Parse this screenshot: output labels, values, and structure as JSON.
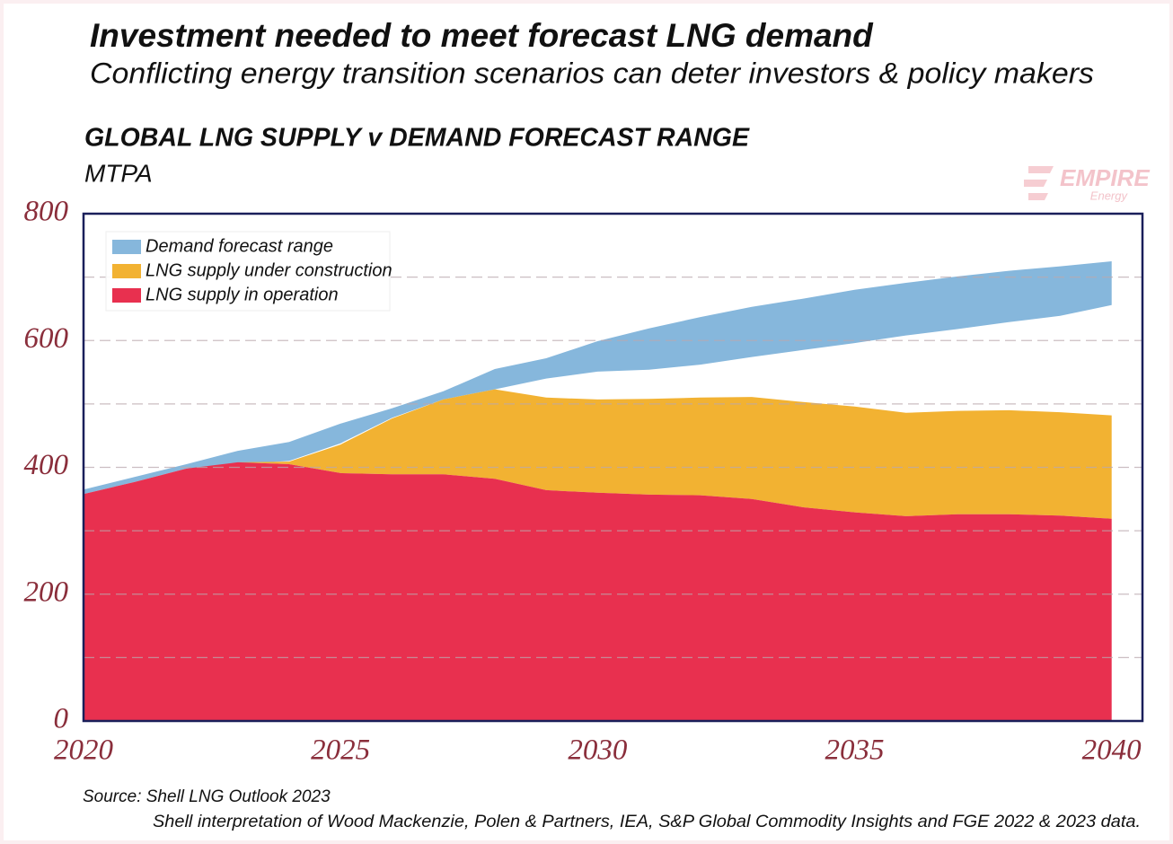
{
  "chart_data": {
    "type": "area",
    "title": "Investment needed to meet forecast LNG demand",
    "subtitle": "Conflicting energy transition scenarios can deter investors & policy makers",
    "chart_title": "GLOBAL LNG SUPPLY v DEMAND FORECAST RANGE",
    "y_label": "MTPA",
    "logo": {
      "name": "EMPIRE",
      "tagline": "Energy"
    },
    "source": [
      "Source: Shell LNG Outlook 2023",
      "Shell interpretation of Wood Mackenzie, Polen & Partners, IEA, S&P Global Commodity Insights and FGE 2022 & 2023 data."
    ],
    "x": [
      2020,
      2021,
      2022,
      2023,
      2024,
      2025,
      2026,
      2027,
      2028,
      2029,
      2030,
      2031,
      2032,
      2033,
      2034,
      2035,
      2036,
      2037,
      2038,
      2039,
      2040
    ],
    "series": [
      {
        "name": "Demand forecast range",
        "color": "#86b7dc",
        "low": [
          358,
          377,
          398,
          405,
          410,
          438,
          478,
          507,
          523,
          540,
          551,
          554,
          562,
          574,
          585,
          596,
          608,
          618,
          629,
          639,
          656
        ],
        "high": [
          365,
          385,
          405,
          426,
          440,
          469,
          493,
          520,
          555,
          572,
          599,
          619,
          637,
          653,
          666,
          680,
          691,
          701,
          710,
          717,
          725
        ]
      },
      {
        "name": "LNG supply under construction",
        "color": "#f2b232",
        "values": [
          0,
          0,
          0,
          0,
          4,
          45,
          88,
          118,
          141,
          146,
          147,
          151,
          154,
          161,
          166,
          167,
          163,
          163,
          164,
          163,
          163
        ]
      },
      {
        "name": "LNG supply in operation",
        "color": "#e8304f",
        "values": [
          358,
          377,
          398,
          408,
          405,
          391,
          389,
          389,
          382,
          364,
          360,
          357,
          356,
          350,
          337,
          329,
          323,
          326,
          326,
          324,
          319
        ]
      }
    ],
    "xlim": [
      2020,
      2040.6
    ],
    "xticks": [
      2020,
      2025,
      2030,
      2035,
      2040
    ],
    "ylim": [
      0,
      800
    ],
    "yticks": [
      0,
      200,
      400,
      600,
      800
    ],
    "y_minor_ticks": [
      100,
      300,
      500,
      700
    ],
    "grid": true,
    "legend": "top-left"
  }
}
